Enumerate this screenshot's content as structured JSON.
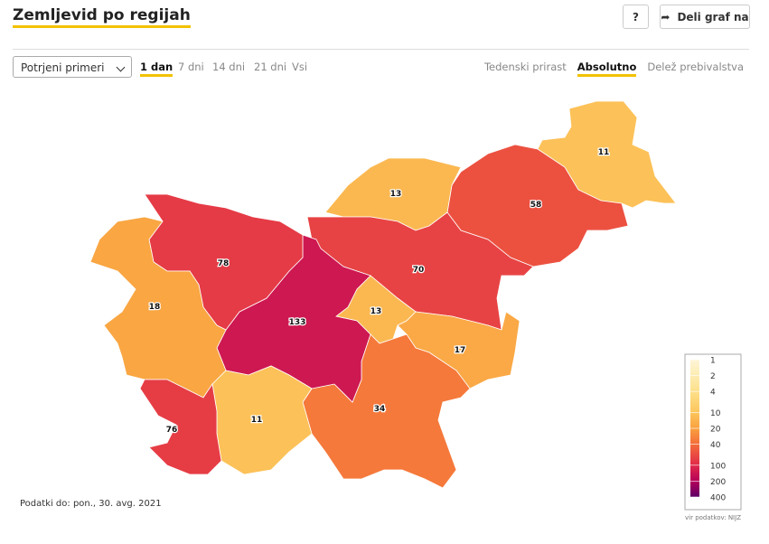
{
  "header": {
    "title": "Zemljevid po regijah",
    "help_button": "?",
    "share_button": "Deli graf na"
  },
  "controls": {
    "dropdown": "Potrjeni primeri",
    "periods": [
      "1 dan",
      "7 dni",
      "14 dni",
      "21 dni",
      "Vsi"
    ],
    "active_period": 0,
    "modes": [
      "Tedenski prirast",
      "Absolutno",
      "Delež prebivalstva"
    ],
    "active_mode": 1
  },
  "map": {
    "regions": [
      {
        "value": 11
      },
      {
        "value": 58
      },
      {
        "value": 13
      },
      {
        "value": 70
      },
      {
        "value": 13
      },
      {
        "value": 17
      },
      {
        "value": 34
      },
      {
        "value": 133
      },
      {
        "value": 78
      },
      {
        "value": 18
      },
      {
        "value": 11
      },
      {
        "value": 76
      }
    ]
  },
  "legend": {
    "ticks": [
      1,
      2,
      4,
      10,
      20,
      40,
      100,
      200,
      400
    ],
    "colors": [
      "#fdf5d8",
      "#fdecb2",
      "#fde08a",
      "#fcc65c",
      "#f9a03f",
      "#f46d3a",
      "#e0294a",
      "#b5005a",
      "#5c0066"
    ]
  },
  "footer": {
    "date": "Podatki do: pon., 30. avg. 2021",
    "source": "vir podatkov: NIJZ"
  }
}
